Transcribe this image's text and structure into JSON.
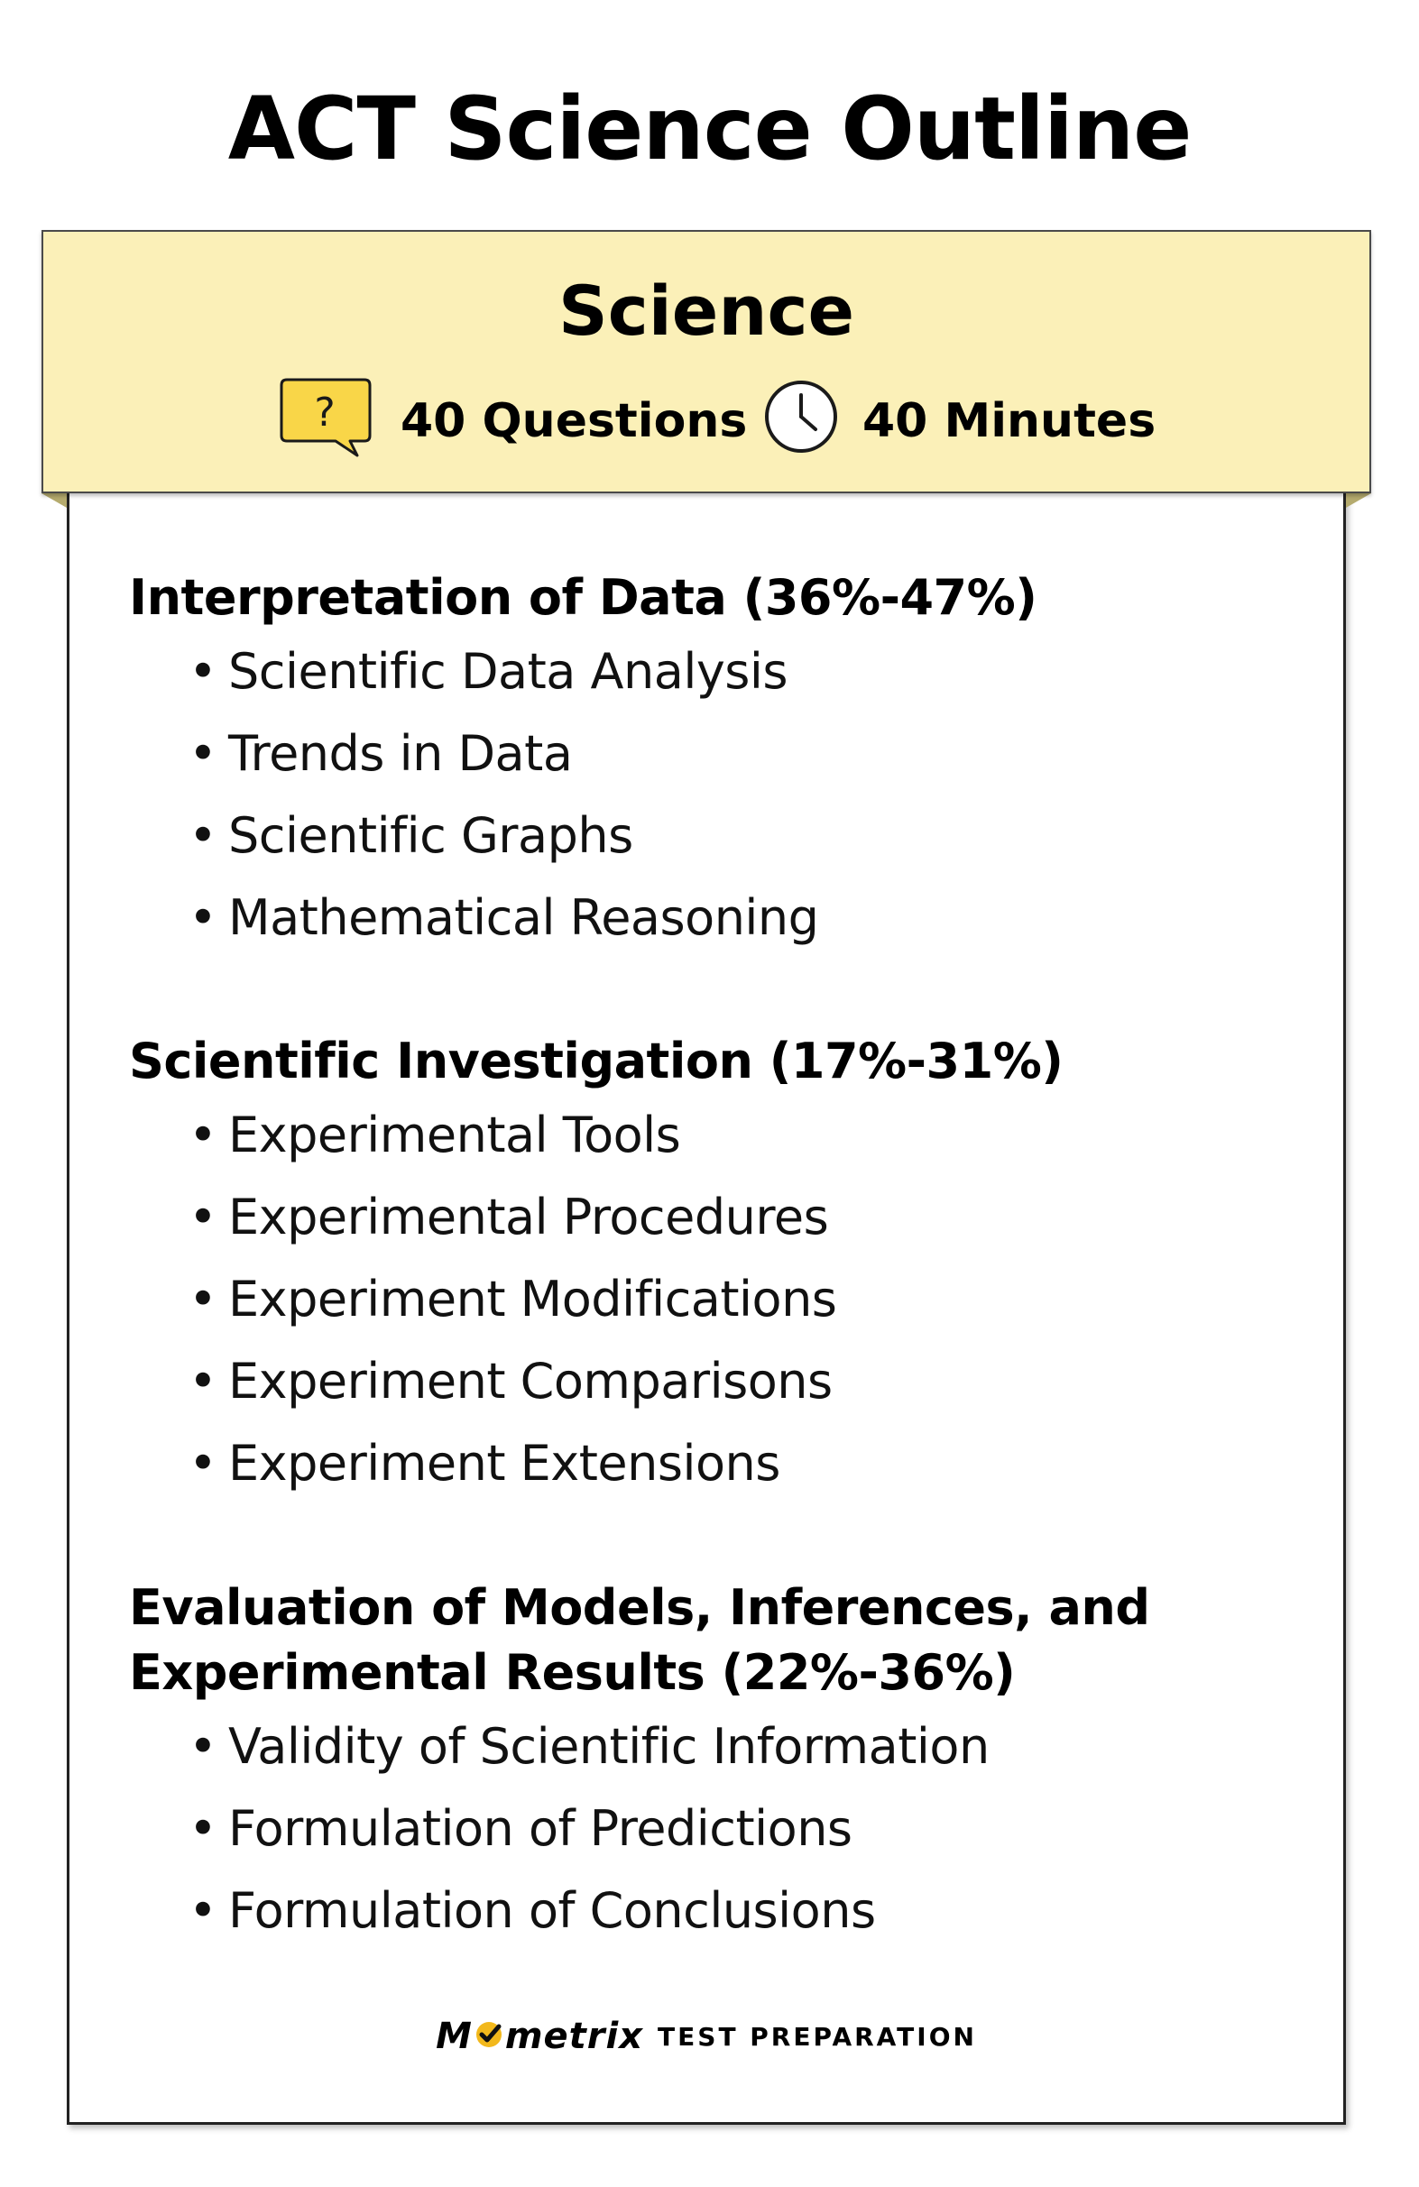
{
  "page": {
    "title": "ACT Science Outline"
  },
  "header": {
    "title": "Science",
    "questions_label": "40 Questions",
    "minutes_label": "40 Minutes",
    "question_icon": "question-bubble-icon",
    "clock_icon": "clock-icon",
    "colors": {
      "banner_background": "#fbf0b8",
      "question_bubble": "#f9d648"
    }
  },
  "sections": [
    {
      "heading": "Interpretation of Data (36%-47%)",
      "items": [
        "Scientific Data Analysis",
        "Trends in Data",
        "Scientific Graphs",
        "Mathematical Reasoning"
      ]
    },
    {
      "heading": "Scientific Investigation (17%-31%)",
      "items": [
        "Experimental Tools",
        "Experimental Procedures",
        "Experiment Modifications",
        "Experiment Comparisons",
        "Experiment Extensions"
      ]
    },
    {
      "heading_line1": "Evaluation of Models, Inferences, and",
      "heading_line2": "Experimental Results (22%-36%)",
      "items": [
        "Validity of Scientific Information",
        "Formulation of Predictions",
        "Formulation of Conclusions"
      ]
    }
  ],
  "footer": {
    "brand_start": "M",
    "brand_end": "metrix",
    "tagline": "TEST PREPARATION",
    "logo_accent": "#f2b81c"
  }
}
